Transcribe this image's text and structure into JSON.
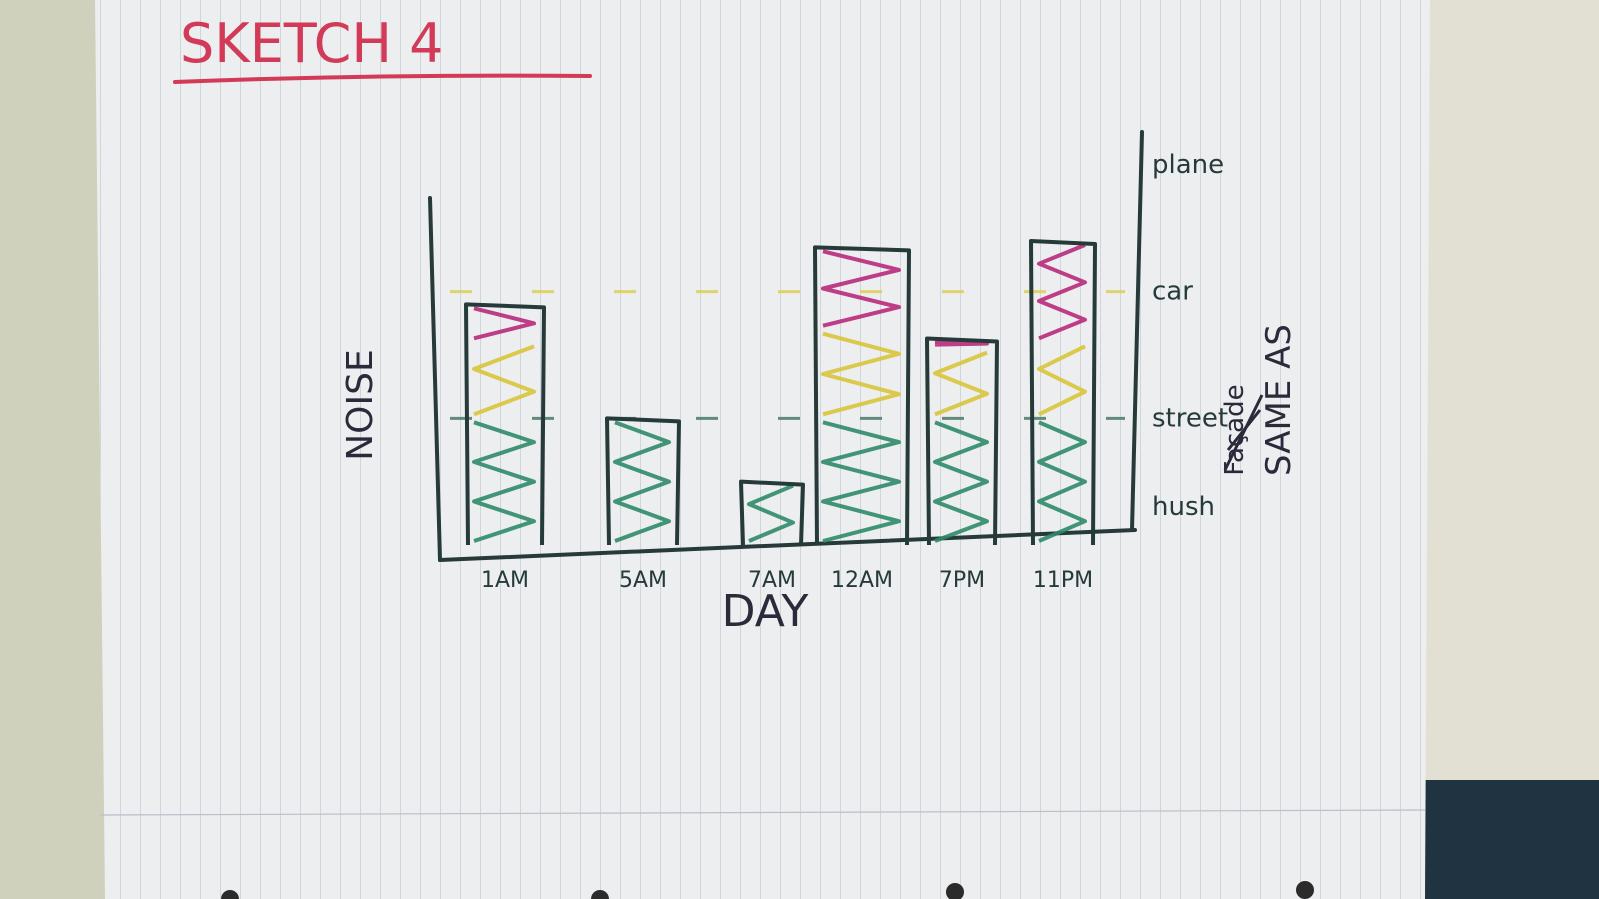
{
  "chart_data": {
    "type": "bar",
    "title": "SKETCH 4",
    "xlabel": "DAY",
    "ylabel": "NOISE",
    "categories": [
      "1AM",
      "5AM",
      "7AM",
      "12AM",
      "7PM",
      "11PM"
    ],
    "level_scale": [
      "hush",
      "street",
      "car",
      "plane"
    ],
    "ylim": [
      0,
      3
    ],
    "series": [
      {
        "name": "hush",
        "color": "#2f8a68",
        "values": [
          1,
          1,
          0.5,
          1,
          1,
          1
        ]
      },
      {
        "name": "street",
        "color": "#d9c43a",
        "values": [
          0.6,
          0,
          0,
          0.7,
          0.55,
          0.6
        ]
      },
      {
        "name": "car",
        "color": "#b8297a",
        "values": [
          0.3,
          0,
          0,
          0.65,
          0.08,
          0.8
        ]
      }
    ],
    "totals": [
      1.9,
      1.0,
      0.5,
      2.35,
      1.63,
      2.4
    ],
    "annotation": {
      "struck_text": "Façade",
      "text": "SAME AS"
    }
  }
}
